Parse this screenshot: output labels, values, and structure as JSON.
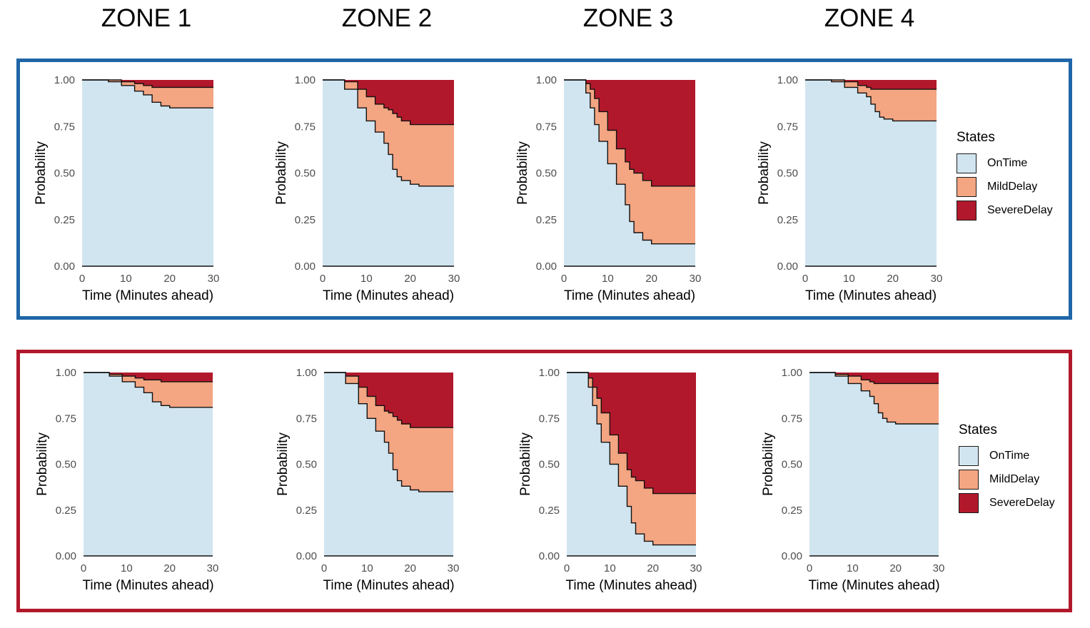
{
  "zones": [
    "ZONE 1",
    "ZONE 2",
    "ZONE 3",
    "ZONE 4"
  ],
  "colors": {
    "OnTime": "#d1e5f0",
    "MildDelay": "#f4a582",
    "SevereDelay": "#b2182b",
    "top_border": "#1f66a8",
    "bottom_border": "#b2182b"
  },
  "legend": {
    "title": "States",
    "items": [
      "OnTime",
      "MildDelay",
      "SevereDelay"
    ]
  },
  "chart_data": [
    {
      "panel": "top",
      "type": "area",
      "xlabel": "Time (Minutes ahead)",
      "ylabel": "Probability",
      "xlim": [
        0,
        30
      ],
      "ylim": [
        0,
        1
      ],
      "x_ticks": [
        0,
        10,
        20,
        30
      ],
      "y_ticks": [
        "0.00",
        "0.25",
        "0.50",
        "0.75",
        "1.00"
      ],
      "facets": [
        {
          "zone": "ZONE 1",
          "x": [
            0,
            3,
            6,
            9,
            12,
            14,
            16,
            18,
            20,
            30
          ],
          "ontime": [
            1.0,
            1.0,
            0.99,
            0.97,
            0.94,
            0.92,
            0.88,
            0.86,
            0.85,
            0.85
          ],
          "ontime_plus_mild": [
            1.0,
            1.0,
            1.0,
            0.99,
            0.98,
            0.97,
            0.96,
            0.96,
            0.96,
            0.96
          ]
        },
        {
          "zone": "ZONE 2",
          "x": [
            0,
            3,
            5,
            8,
            10,
            12,
            14,
            15,
            16,
            17,
            18,
            20,
            22,
            30
          ],
          "ontime": [
            1.0,
            1.0,
            0.95,
            0.85,
            0.78,
            0.72,
            0.66,
            0.6,
            0.52,
            0.48,
            0.46,
            0.44,
            0.43,
            0.43
          ],
          "ontime_plus_mild": [
            1.0,
            1.0,
            0.99,
            0.95,
            0.91,
            0.87,
            0.85,
            0.84,
            0.82,
            0.8,
            0.78,
            0.76,
            0.76,
            0.76
          ]
        },
        {
          "zone": "ZONE 3",
          "x": [
            0,
            4,
            5,
            6,
            7,
            8,
            10,
            12,
            14,
            15,
            16,
            18,
            20,
            30
          ],
          "ontime": [
            1.0,
            1.0,
            0.93,
            0.85,
            0.76,
            0.67,
            0.55,
            0.44,
            0.33,
            0.24,
            0.18,
            0.14,
            0.12,
            0.12
          ],
          "ontime_plus_mild": [
            1.0,
            1.0,
            0.98,
            0.95,
            0.9,
            0.83,
            0.73,
            0.63,
            0.56,
            0.52,
            0.5,
            0.46,
            0.43,
            0.43
          ]
        },
        {
          "zone": "ZONE 4",
          "x": [
            0,
            3,
            6,
            9,
            12,
            14,
            15,
            16,
            17,
            18,
            20,
            30
          ],
          "ontime": [
            1.0,
            1.0,
            0.99,
            0.96,
            0.93,
            0.91,
            0.87,
            0.83,
            0.8,
            0.79,
            0.78,
            0.78
          ],
          "ontime_plus_mild": [
            1.0,
            1.0,
            1.0,
            0.99,
            0.97,
            0.96,
            0.95,
            0.95,
            0.95,
            0.95,
            0.95,
            0.95
          ]
        }
      ]
    },
    {
      "panel": "bottom",
      "type": "area",
      "xlabel": "Time (Minutes ahead)",
      "ylabel": "Probability",
      "xlim": [
        0,
        30
      ],
      "ylim": [
        0,
        1
      ],
      "x_ticks": [
        0,
        10,
        20,
        30
      ],
      "y_ticks": [
        "0.00",
        "0.25",
        "0.50",
        "0.75",
        "1.00"
      ],
      "facets": [
        {
          "zone": "ZONE 1",
          "x": [
            0,
            3,
            6,
            9,
            12,
            14,
            16,
            18,
            20,
            30
          ],
          "ontime": [
            1.0,
            1.0,
            0.98,
            0.95,
            0.92,
            0.89,
            0.84,
            0.82,
            0.81,
            0.81
          ],
          "ontime_plus_mild": [
            1.0,
            1.0,
            0.99,
            0.98,
            0.97,
            0.96,
            0.96,
            0.95,
            0.95,
            0.95
          ]
        },
        {
          "zone": "ZONE 2",
          "x": [
            0,
            3,
            5,
            8,
            10,
            12,
            14,
            15,
            16,
            17,
            18,
            20,
            22,
            30
          ],
          "ontime": [
            1.0,
            1.0,
            0.94,
            0.83,
            0.75,
            0.68,
            0.62,
            0.56,
            0.47,
            0.41,
            0.38,
            0.36,
            0.35,
            0.35
          ],
          "ontime_plus_mild": [
            1.0,
            1.0,
            0.98,
            0.92,
            0.87,
            0.82,
            0.79,
            0.78,
            0.76,
            0.74,
            0.72,
            0.7,
            0.7,
            0.7
          ]
        },
        {
          "zone": "ZONE 3",
          "x": [
            0,
            4,
            5,
            6,
            7,
            8,
            10,
            12,
            14,
            15,
            16,
            18,
            20,
            30
          ],
          "ontime": [
            1.0,
            1.0,
            0.92,
            0.82,
            0.72,
            0.62,
            0.5,
            0.38,
            0.27,
            0.18,
            0.12,
            0.08,
            0.06,
            0.06
          ],
          "ontime_plus_mild": [
            1.0,
            1.0,
            0.97,
            0.92,
            0.86,
            0.78,
            0.66,
            0.56,
            0.47,
            0.43,
            0.41,
            0.37,
            0.34,
            0.34
          ]
        },
        {
          "zone": "ZONE 4",
          "x": [
            0,
            3,
            6,
            9,
            12,
            14,
            15,
            16,
            17,
            18,
            20,
            30
          ],
          "ontime": [
            1.0,
            1.0,
            0.98,
            0.94,
            0.9,
            0.87,
            0.83,
            0.78,
            0.75,
            0.73,
            0.72,
            0.72
          ],
          "ontime_plus_mild": [
            1.0,
            1.0,
            0.99,
            0.98,
            0.96,
            0.95,
            0.94,
            0.94,
            0.94,
            0.94,
            0.94,
            0.94
          ]
        }
      ]
    }
  ]
}
